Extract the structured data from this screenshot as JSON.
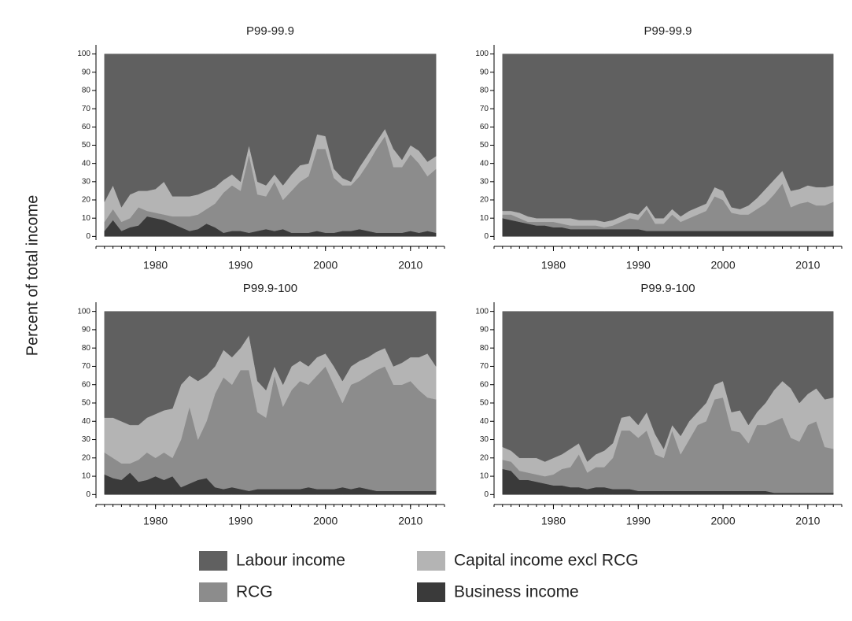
{
  "chart_data": [
    {
      "type": "stacked-area",
      "title": "P99-99.9",
      "ylabel": "Percent of total income",
      "x": [
        1974,
        1975,
        1976,
        1977,
        1978,
        1979,
        1980,
        1981,
        1982,
        1983,
        1984,
        1985,
        1986,
        1987,
        1988,
        1989,
        1990,
        1991,
        1992,
        1993,
        1994,
        1995,
        1996,
        1997,
        1998,
        1999,
        2000,
        2001,
        2002,
        2003,
        2004,
        2005,
        2006,
        2007,
        2008,
        2009,
        2010,
        2011,
        2012,
        2013
      ],
      "xlim": [
        1973,
        2014
      ],
      "xticks": [
        1980,
        1990,
        2000,
        2010
      ],
      "ylim": [
        -2,
        105
      ],
      "yticks": [
        0,
        10,
        20,
        30,
        40,
        50,
        60,
        70,
        80,
        90,
        100
      ],
      "series": [
        {
          "name": "Business income",
          "color": "#3a3a3a",
          "values": [
            3,
            9,
            3,
            5,
            6,
            11,
            10,
            9,
            7,
            5,
            3,
            4,
            7,
            5,
            2,
            3,
            3,
            2,
            3,
            4,
            3,
            4,
            2,
            2,
            2,
            3,
            2,
            2,
            3,
            3,
            4,
            3,
            2,
            2,
            2,
            2,
            3,
            2,
            3,
            2
          ]
        },
        {
          "name": "RCG",
          "color": "#8c8c8c",
          "values": [
            5,
            6,
            5,
            5,
            10,
            3,
            3,
            3,
            4,
            6,
            8,
            8,
            8,
            13,
            22,
            25,
            22,
            43,
            20,
            18,
            27,
            16,
            23,
            28,
            31,
            45,
            46,
            30,
            25,
            25,
            29,
            37,
            46,
            53,
            36,
            36,
            42,
            38,
            30,
            35
          ]
        },
        {
          "name": "Capital income excl RCG",
          "color": "#b4b4b4",
          "values": [
            11,
            13,
            8,
            13,
            9,
            11,
            13,
            18,
            11,
            11,
            11,
            11,
            10,
            9,
            7,
            6,
            5,
            5,
            7,
            6,
            4,
            8,
            9,
            9,
            7,
            8,
            7,
            5,
            4,
            2,
            5,
            5,
            4,
            4,
            10,
            4,
            5,
            7,
            8,
            7
          ]
        },
        {
          "name": "Labour income",
          "color": "#606060",
          "values": [
            81,
            72,
            84,
            77,
            75,
            75,
            74,
            70,
            78,
            78,
            78,
            77,
            75,
            73,
            69,
            66,
            70,
            50,
            70,
            72,
            66,
            72,
            66,
            61,
            60,
            44,
            45,
            63,
            68,
            70,
            62,
            55,
            48,
            41,
            52,
            58,
            50,
            53,
            59,
            56
          ]
        }
      ]
    },
    {
      "type": "stacked-area",
      "title": "P99-99.9",
      "x": [
        1974,
        1975,
        1976,
        1977,
        1978,
        1979,
        1980,
        1981,
        1982,
        1983,
        1984,
        1985,
        1986,
        1987,
        1988,
        1989,
        1990,
        1991,
        1992,
        1993,
        1994,
        1995,
        1996,
        1997,
        1998,
        1999,
        2000,
        2001,
        2002,
        2003,
        2004,
        2005,
        2006,
        2007,
        2008,
        2009,
        2010,
        2011,
        2012,
        2013
      ],
      "xlim": [
        1973,
        2014
      ],
      "xticks": [
        1980,
        1990,
        2000,
        2010
      ],
      "ylim": [
        -2,
        105
      ],
      "yticks": [
        0,
        10,
        20,
        30,
        40,
        50,
        60,
        70,
        80,
        90,
        100
      ],
      "series": [
        {
          "name": "Business income",
          "color": "#3a3a3a",
          "values": [
            10,
            9,
            8,
            7,
            6,
            6,
            5,
            5,
            4,
            4,
            4,
            4,
            4,
            4,
            4,
            4,
            4,
            3,
            3,
            3,
            3,
            3,
            3,
            3,
            3,
            3,
            3,
            3,
            3,
            3,
            3,
            3,
            3,
            3,
            3,
            3,
            3,
            3,
            3,
            3
          ]
        },
        {
          "name": "RCG",
          "color": "#8c8c8c",
          "values": [
            2,
            3,
            2,
            1,
            2,
            2,
            3,
            2,
            2,
            2,
            2,
            2,
            1,
            2,
            4,
            6,
            5,
            12,
            4,
            4,
            9,
            5,
            7,
            9,
            11,
            19,
            17,
            10,
            9,
            9,
            12,
            15,
            20,
            26,
            13,
            15,
            16,
            14,
            14,
            16
          ]
        },
        {
          "name": "Capital income excl RCG",
          "color": "#b4b4b4",
          "values": [
            2,
            2,
            3,
            3,
            2,
            2,
            2,
            3,
            4,
            3,
            3,
            3,
            3,
            3,
            3,
            3,
            3,
            2,
            3,
            3,
            3,
            3,
            4,
            4,
            4,
            5,
            5,
            3,
            3,
            5,
            6,
            8,
            8,
            7,
            9,
            8,
            9,
            10,
            10,
            9
          ]
        },
        {
          "name": "Labour income",
          "color": "#606060",
          "values": [
            86,
            86,
            87,
            89,
            90,
            90,
            90,
            90,
            90,
            91,
            91,
            91,
            92,
            91,
            89,
            87,
            88,
            83,
            90,
            90,
            85,
            89,
            86,
            84,
            82,
            73,
            75,
            84,
            85,
            83,
            79,
            74,
            69,
            64,
            75,
            74,
            72,
            73,
            73,
            72
          ]
        }
      ]
    },
    {
      "type": "stacked-area",
      "title": "P99.9-100",
      "x": [
        1974,
        1975,
        1976,
        1977,
        1978,
        1979,
        1980,
        1981,
        1982,
        1983,
        1984,
        1985,
        1986,
        1987,
        1988,
        1989,
        1990,
        1991,
        1992,
        1993,
        1994,
        1995,
        1996,
        1997,
        1998,
        1999,
        2000,
        2001,
        2002,
        2003,
        2004,
        2005,
        2006,
        2007,
        2008,
        2009,
        2010,
        2011,
        2012,
        2013
      ],
      "xlim": [
        1973,
        2014
      ],
      "xticks": [
        1980,
        1990,
        2000,
        2010
      ],
      "ylim": [
        -2,
        105
      ],
      "yticks": [
        0,
        10,
        20,
        30,
        40,
        50,
        60,
        70,
        80,
        90,
        100
      ],
      "series": [
        {
          "name": "Business income",
          "color": "#3a3a3a",
          "values": [
            11,
            9,
            8,
            12,
            7,
            8,
            10,
            8,
            10,
            4,
            6,
            8,
            9,
            4,
            3,
            4,
            3,
            2,
            3,
            3,
            3,
            3,
            3,
            3,
            4,
            3,
            3,
            3,
            4,
            3,
            4,
            3,
            2,
            2,
            2,
            2,
            2,
            2,
            2,
            2
          ]
        },
        {
          "name": "RCG",
          "color": "#8c8c8c",
          "values": [
            12,
            11,
            9,
            5,
            12,
            15,
            10,
            15,
            10,
            26,
            42,
            22,
            31,
            51,
            61,
            56,
            65,
            66,
            42,
            39,
            62,
            45,
            54,
            59,
            56,
            62,
            67,
            57,
            46,
            57,
            58,
            62,
            66,
            68,
            58,
            58,
            60,
            55,
            51,
            50
          ]
        },
        {
          "name": "Capital income excl RCG",
          "color": "#b4b4b4",
          "values": [
            19,
            22,
            23,
            21,
            19,
            19,
            24,
            23,
            27,
            30,
            17,
            32,
            25,
            15,
            15,
            15,
            12,
            19,
            17,
            15,
            5,
            12,
            13,
            11,
            10,
            10,
            7,
            10,
            12,
            10,
            11,
            10,
            10,
            10,
            10,
            12,
            13,
            18,
            24,
            18
          ]
        },
        {
          "name": "Labour income",
          "color": "#606060",
          "values": [
            58,
            58,
            60,
            62,
            62,
            58,
            56,
            54,
            53,
            40,
            35,
            38,
            35,
            30,
            21,
            25,
            20,
            13,
            38,
            43,
            30,
            40,
            30,
            27,
            30,
            25,
            23,
            30,
            38,
            30,
            27,
            25,
            22,
            20,
            30,
            28,
            25,
            25,
            23,
            30
          ]
        }
      ]
    },
    {
      "type": "stacked-area",
      "title": "P99.9-100",
      "x": [
        1974,
        1975,
        1976,
        1977,
        1978,
        1979,
        1980,
        1981,
        1982,
        1983,
        1984,
        1985,
        1986,
        1987,
        1988,
        1989,
        1990,
        1991,
        1992,
        1993,
        1994,
        1995,
        1996,
        1997,
        1998,
        1999,
        2000,
        2001,
        2002,
        2003,
        2004,
        2005,
        2006,
        2007,
        2008,
        2009,
        2010,
        2011,
        2012,
        2013
      ],
      "xlim": [
        1973,
        2014
      ],
      "xticks": [
        1980,
        1990,
        2000,
        2010
      ],
      "ylim": [
        -2,
        105
      ],
      "yticks": [
        0,
        10,
        20,
        30,
        40,
        50,
        60,
        70,
        80,
        90,
        100
      ],
      "series": [
        {
          "name": "Business income",
          "color": "#3a3a3a",
          "values": [
            14,
            13,
            8,
            8,
            7,
            6,
            5,
            5,
            4,
            4,
            3,
            4,
            4,
            3,
            3,
            3,
            2,
            2,
            2,
            2,
            2,
            2,
            2,
            2,
            2,
            2,
            2,
            2,
            2,
            2,
            2,
            2,
            1,
            1,
            1,
            1,
            1,
            1,
            1,
            1
          ]
        },
        {
          "name": "RCG",
          "color": "#8c8c8c",
          "values": [
            5,
            5,
            5,
            4,
            4,
            4,
            6,
            9,
            11,
            18,
            9,
            11,
            11,
            17,
            32,
            32,
            29,
            33,
            20,
            18,
            33,
            20,
            28,
            36,
            38,
            50,
            51,
            33,
            32,
            26,
            36,
            36,
            39,
            41,
            30,
            28,
            37,
            39,
            25,
            24
          ]
        },
        {
          "name": "Capital income excl RCG",
          "color": "#b4b4b4",
          "values": [
            7,
            6,
            7,
            8,
            9,
            8,
            9,
            8,
            10,
            6,
            6,
            7,
            9,
            8,
            7,
            8,
            7,
            10,
            11,
            5,
            3,
            10,
            10,
            7,
            10,
            8,
            9,
            10,
            12,
            10,
            7,
            12,
            17,
            20,
            27,
            21,
            17,
            18,
            26,
            28
          ]
        },
        {
          "name": "Labour income",
          "color": "#606060",
          "values": [
            74,
            76,
            80,
            80,
            80,
            82,
            80,
            78,
            75,
            72,
            82,
            78,
            76,
            72,
            58,
            57,
            62,
            55,
            67,
            75,
            62,
            68,
            60,
            55,
            50,
            40,
            38,
            55,
            54,
            62,
            55,
            50,
            43,
            38,
            42,
            50,
            45,
            42,
            48,
            47
          ]
        }
      ]
    }
  ]
}
